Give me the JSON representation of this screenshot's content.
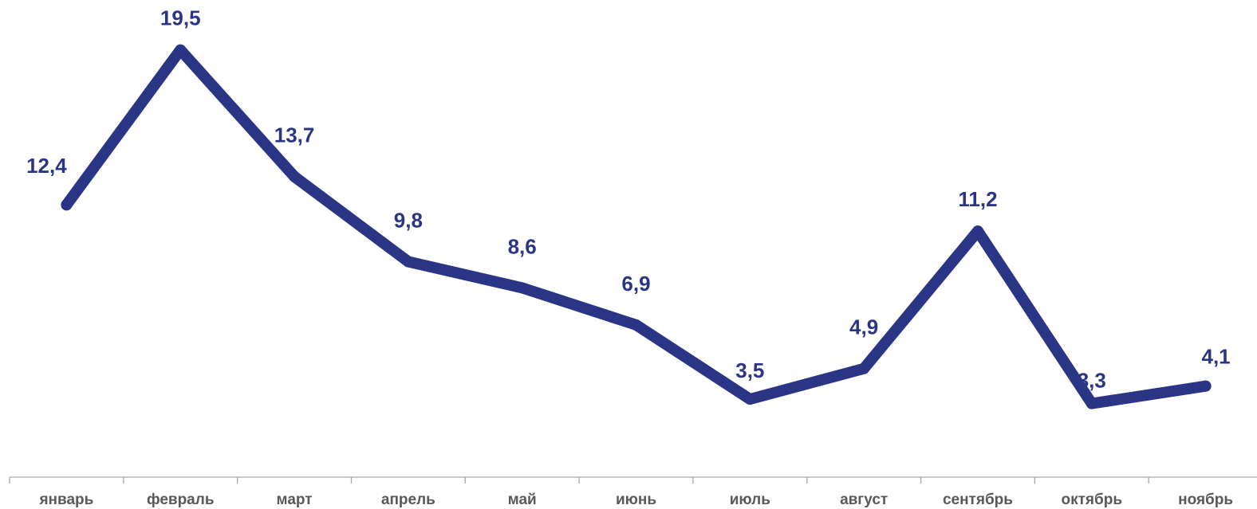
{
  "colors": {
    "series": "#2B3585",
    "axis": "#A6A6A6",
    "tick_text": "#595959"
  },
  "chart_data": {
    "type": "line",
    "title": "",
    "xlabel": "",
    "ylabel": "",
    "categories": [
      "январь",
      "февраль",
      "март",
      "апрель",
      "май",
      "июнь",
      "июль",
      "август",
      "сентябрь",
      "октябрь",
      "ноябрь"
    ],
    "series": [
      {
        "values": [
          12.4,
          19.5,
          13.7,
          9.8,
          8.6,
          6.9,
          3.5,
          4.9,
          11.2,
          3.3,
          4.1
        ],
        "labels": [
          "12,4",
          "19,5",
          "13,7",
          "9,8",
          "8,6",
          "6,9",
          "3,5",
          "4,9",
          "11,2",
          "3,3",
          "4,1"
        ]
      }
    ],
    "ylim": [
      0,
      21.5
    ],
    "grid": false,
    "legend": "none",
    "y_axis_visible": false
  }
}
